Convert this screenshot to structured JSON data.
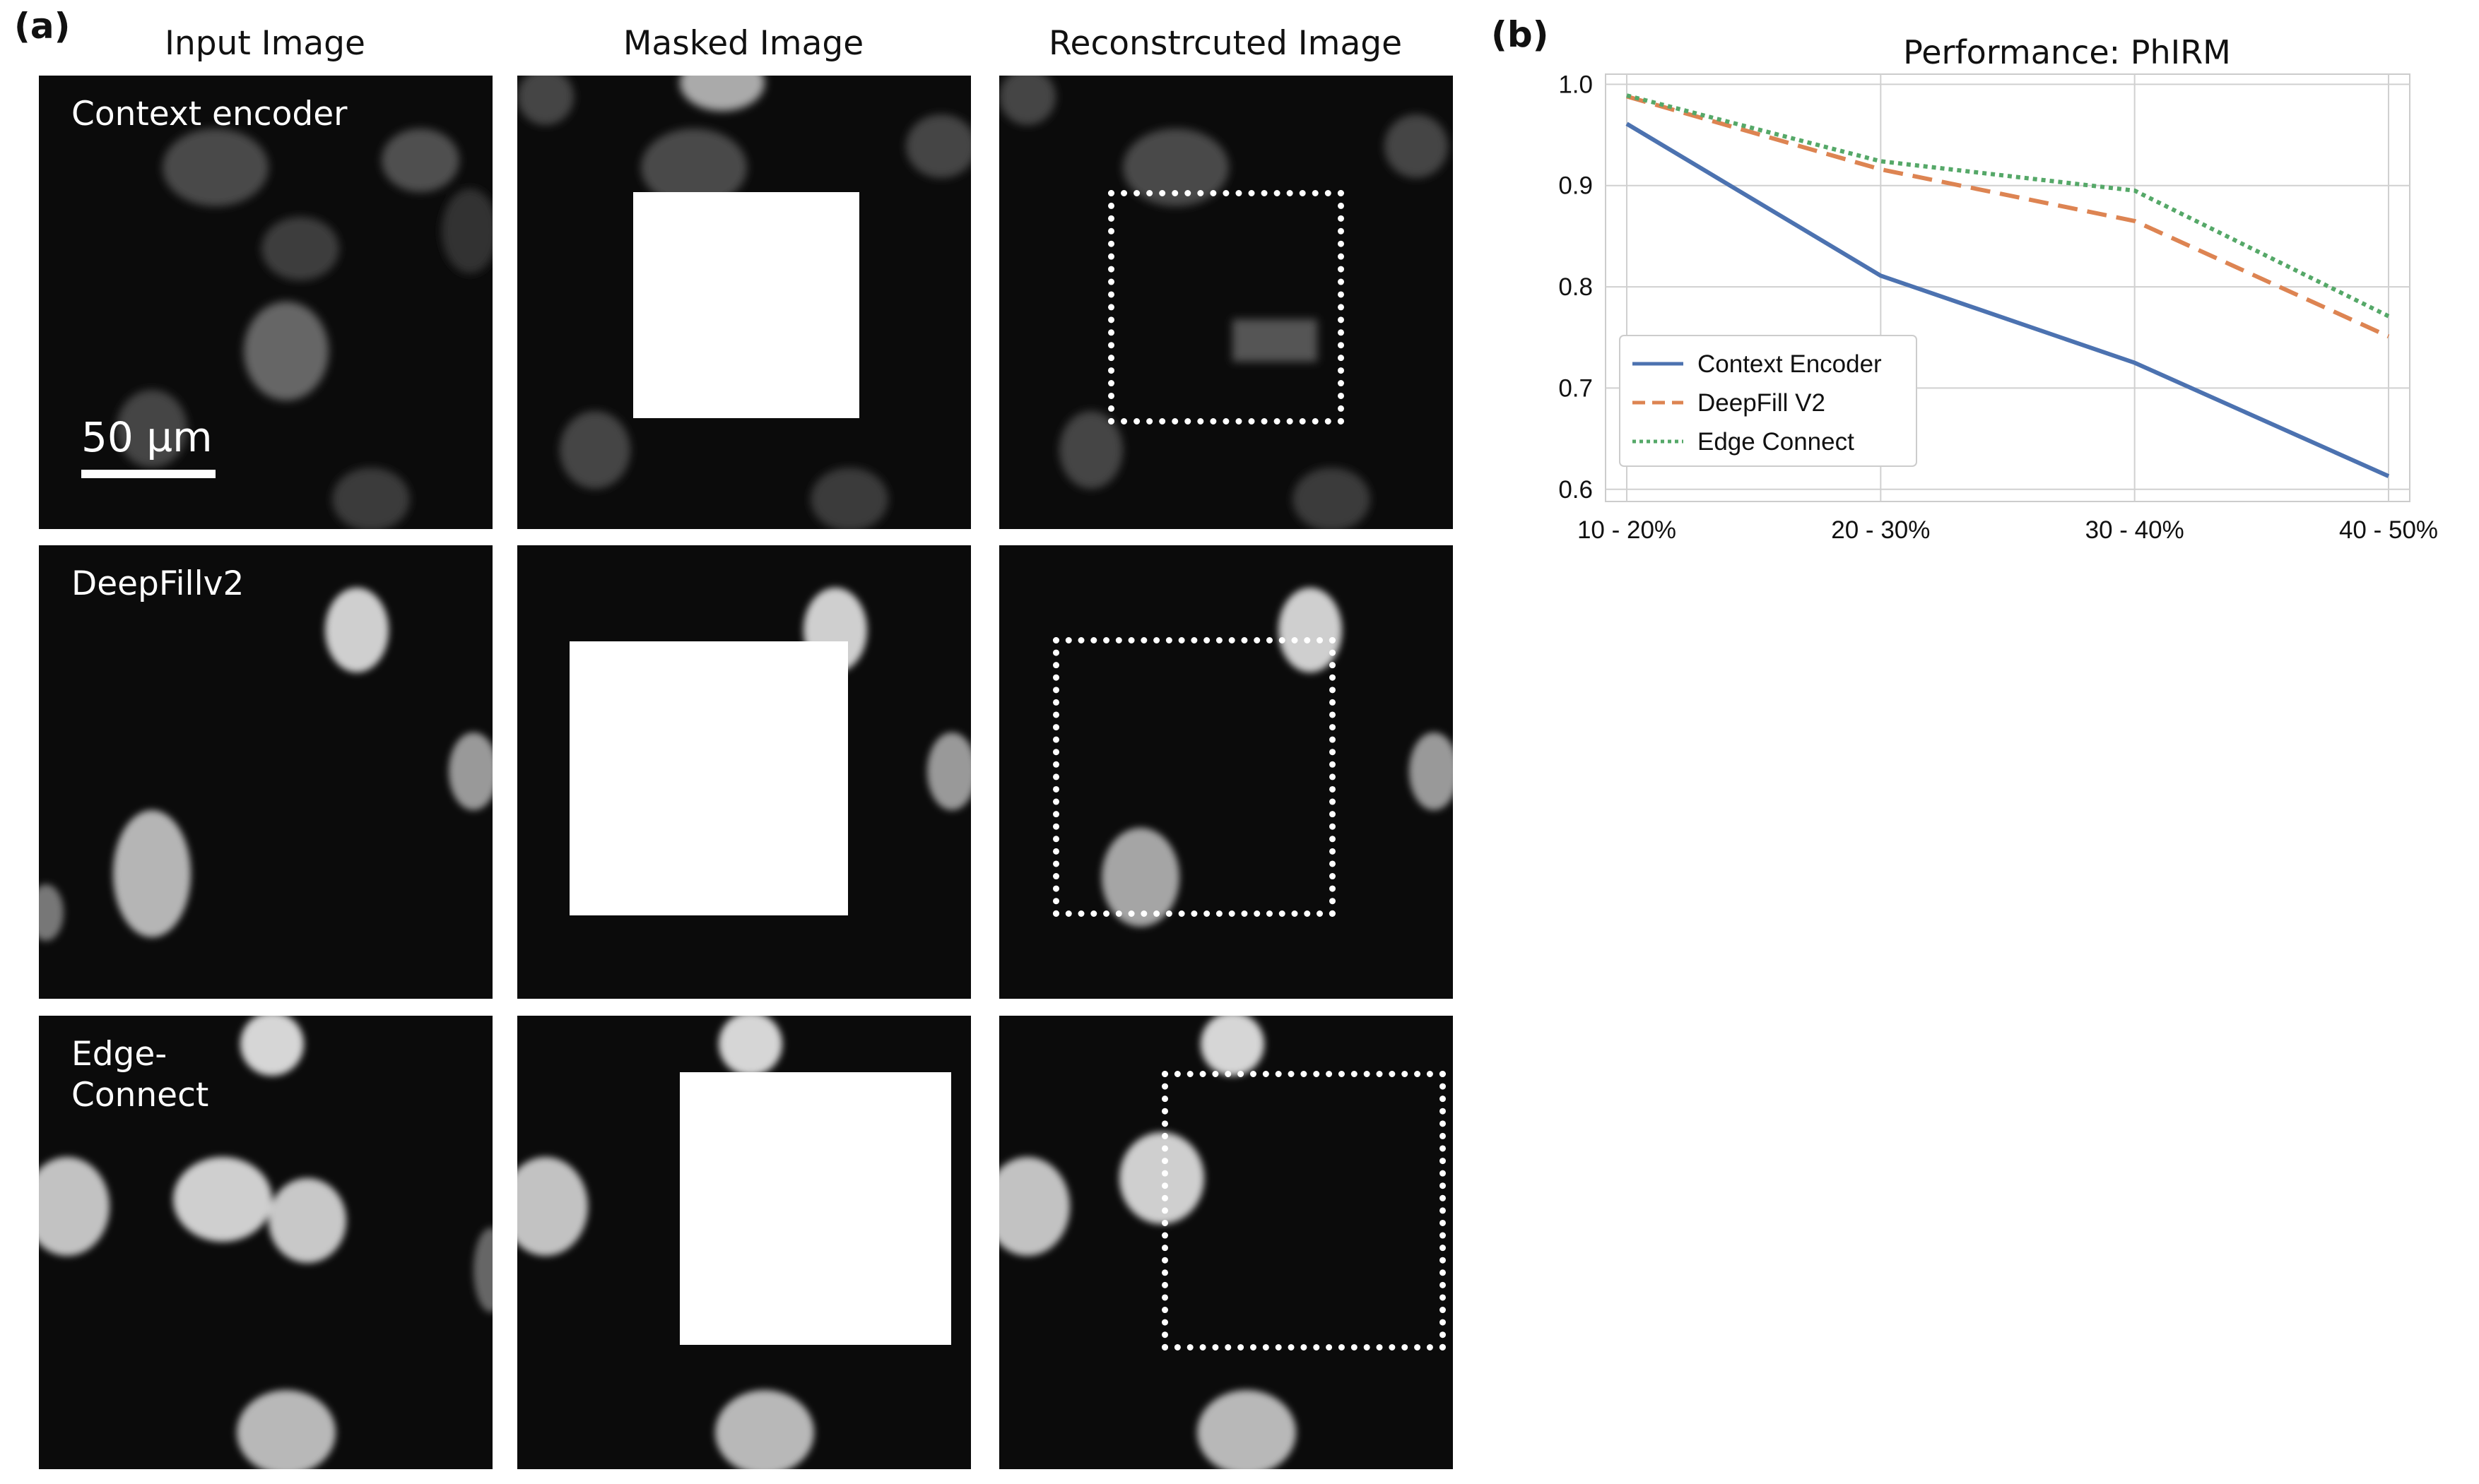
{
  "panels": {
    "a": "(a)",
    "b": "(b)"
  },
  "columns": [
    "Input Image",
    "Masked Image",
    "Reconstrcuted Image"
  ],
  "rows": [
    {
      "label": "Context encoder"
    },
    {
      "label": "DeepFillv2"
    },
    {
      "label": "Edge-\nConnect"
    }
  ],
  "scalebar": "50 µm",
  "chart_data": {
    "type": "line",
    "title": "Performance: PhIRM",
    "categories": [
      "10 - 20%",
      "20 - 30%",
      "30 - 40%",
      "40 - 50%"
    ],
    "ylim": [
      0.6,
      1.0
    ],
    "yticks": [
      "0.6",
      "0.7",
      "0.8",
      "0.9",
      "1.0"
    ],
    "grid": true,
    "legend_position": "lower-left",
    "series": [
      {
        "name": "Context Encoder",
        "values": [
          0.961,
          0.811,
          0.725,
          0.613
        ],
        "color": "#4c72b0",
        "style": "solid"
      },
      {
        "name": "DeepFill V2",
        "values": [
          0.988,
          0.916,
          0.865,
          0.751
        ],
        "color": "#dd8452",
        "style": "dashed"
      },
      {
        "name": "Edge Connect",
        "values": [
          0.989,
          0.924,
          0.895,
          0.771
        ],
        "color": "#55a868",
        "style": "dotted"
      }
    ]
  }
}
